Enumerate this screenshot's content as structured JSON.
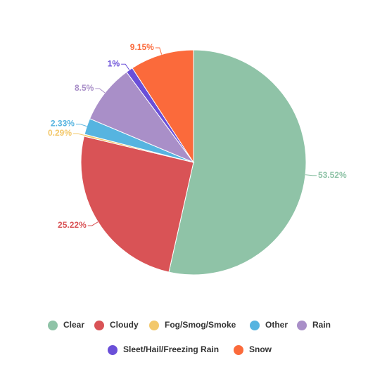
{
  "chart_data": {
    "type": "pie",
    "categories": [
      "Clear",
      "Cloudy",
      "Fog/Smog/Smoke",
      "Other",
      "Rain",
      "Sleet/Hail/Freezing Rain",
      "Snow"
    ],
    "values": [
      53.52,
      25.22,
      0.29,
      2.33,
      8.5,
      1,
      9.15
    ],
    "value_labels": [
      "53.52%",
      "25.22%",
      "0.29%",
      "2.33%",
      "8.5%",
      "1%",
      "9.15%"
    ],
    "colors": [
      "#8fc3a7",
      "#d95356",
      "#f3c86b",
      "#56b4e0",
      "#a98fc8",
      "#6a4fd8",
      "#fb6a3b"
    ],
    "legend": "bottom"
  }
}
